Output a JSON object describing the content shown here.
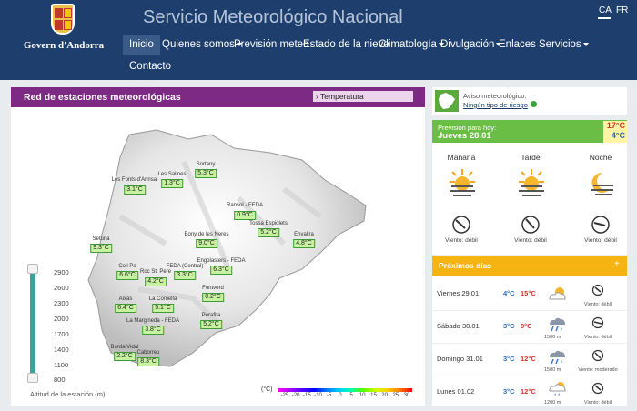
{
  "header": {
    "org_name": "Govern d'Andorra",
    "site_title": "Servicio Meteorológico Nacional",
    "languages": [
      "CA",
      "FR"
    ],
    "nav": [
      {
        "label": "Inicio",
        "active": true,
        "dropdown": false
      },
      {
        "label": "Quienes somos",
        "active": false,
        "dropdown": true
      },
      {
        "label": "Previsión meteo",
        "active": false,
        "dropdown": false
      },
      {
        "label": "Estado de la nieve",
        "active": false,
        "dropdown": false
      },
      {
        "label": "Climatología",
        "active": false,
        "dropdown": true
      },
      {
        "label": "Divulgación",
        "active": false,
        "dropdown": true
      },
      {
        "label": "Enlaces",
        "active": false,
        "dropdown": false
      },
      {
        "label": "Servicios",
        "active": false,
        "dropdown": true
      },
      {
        "label": "Contacto",
        "active": false,
        "dropdown": false
      }
    ]
  },
  "stations_panel": {
    "title": "Red de estaciones meteorológicas",
    "layer_select": "Temperatura",
    "stations": [
      {
        "name": "Sortany",
        "value": "5.3°C"
      },
      {
        "name": "Les Salines",
        "value": "1.3°C"
      },
      {
        "name": "Les Fonts d'Arinsal",
        "value": "3.1°C"
      },
      {
        "name": "Ransol - FEDA",
        "value": "0.9°C"
      },
      {
        "name": "Tossa Espiolets",
        "value": "5.2°C"
      },
      {
        "name": "Envalira",
        "value": "4.8°C"
      },
      {
        "name": "Bony de les Neres",
        "value": "9.0°C"
      },
      {
        "name": "Setúria",
        "value": "9.3°C"
      },
      {
        "name": "Coll Pa",
        "value": "6.6°C"
      },
      {
        "name": "Roc St. Pere",
        "value": "4.2°C"
      },
      {
        "name": "FEDA (Central)",
        "value": "3.3°C"
      },
      {
        "name": "Engolasters - FEDA",
        "value": "6.3°C"
      },
      {
        "name": "Fontverd",
        "value": "0.2°C"
      },
      {
        "name": "Aixàs",
        "value": "6.4°C"
      },
      {
        "name": "La Comella",
        "value": "5.1°C"
      },
      {
        "name": "Perafita",
        "value": "5.2°C"
      },
      {
        "name": "La Margineda - FEDA",
        "value": "3.8°C"
      },
      {
        "name": "Borda Vidal",
        "value": "2.2°C"
      },
      {
        "name": "Caborreu",
        "value": "8.3°C"
      }
    ],
    "altitude_ticks": [
      "2900",
      "2600",
      "2300",
      "2000",
      "1700",
      "1400",
      "1100",
      "800"
    ],
    "altitude_label": "Altitud de la estación (m)",
    "legend_unit": "(°C)",
    "legend_ticks": [
      "-25",
      "-20",
      "-15",
      "-10",
      "-5",
      "0",
      "5",
      "10",
      "15",
      "20",
      "25",
      "30"
    ],
    "legend_colors": [
      "#ff00ff",
      "#aa00ff",
      "#5500ff",
      "#0000ff",
      "#0077ff",
      "#00ccff",
      "#00ffaa",
      "#55ff00",
      "#ccff00",
      "#ffcc00",
      "#ff7700",
      "#ff0000"
    ]
  },
  "warning": {
    "title": "Aviso meteorológico:",
    "status": "Ningún tipo de riesgo"
  },
  "forecast_today": {
    "label": "Previsión para hoy:",
    "date": "Jueves 28.01",
    "max": "17°C",
    "min": "4°C",
    "periods": [
      {
        "name": "Mañana",
        "wind": "Viento: débil"
      },
      {
        "name": "Tarde",
        "wind": "Viento: débil"
      },
      {
        "name": "Noche",
        "wind": "Viento: débil"
      }
    ]
  },
  "next_days": {
    "title": "Próximos días",
    "days": [
      {
        "day": "Viernes 29.01",
        "min": "4°C",
        "max": "15°C",
        "snow": "",
        "wind": "Viento: débil",
        "icon": "sun-cloud-icon"
      },
      {
        "day": "Sábado 30.01",
        "min": "3°C",
        "max": "9°C",
        "snow": "1500 m",
        "wind": "Viento: débil",
        "icon": "rain-snow-icon"
      },
      {
        "day": "Domingo 31.01",
        "min": "3°C",
        "max": "12°C",
        "snow": "1500 m",
        "wind": "Viento: moderado",
        "icon": "rain-snow-icon"
      },
      {
        "day": "Lunes 01.02",
        "min": "3°C",
        "max": "12°C",
        "snow": "1200 m",
        "wind": "Viento: débil",
        "icon": "sun-snow-icon"
      }
    ]
  }
}
